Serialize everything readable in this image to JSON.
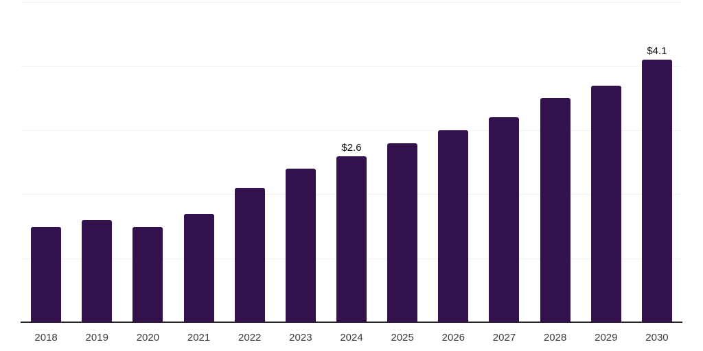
{
  "chart_data": {
    "type": "bar",
    "title": "",
    "xlabel": "",
    "ylabel": "",
    "categories": [
      "2018",
      "2019",
      "2020",
      "2021",
      "2022",
      "2023",
      "2024",
      "2025",
      "2026",
      "2027",
      "2028",
      "2029",
      "2030"
    ],
    "values": [
      1.5,
      1.6,
      1.5,
      1.7,
      2.1,
      2.4,
      2.6,
      2.8,
      3.0,
      3.2,
      3.5,
      3.7,
      4.1
    ],
    "data_labels": [
      {
        "category": "2024",
        "text": "$2.6"
      },
      {
        "category": "2030",
        "text": "$4.1"
      }
    ],
    "ylim": [
      0,
      5
    ],
    "gridline_step": 1,
    "grid": "horizontal",
    "legend": "none",
    "colors": {
      "bar": "#33114D",
      "axis_line": "#262626",
      "gridline": "#f0f0f0",
      "tick_label": "#3b3b3b",
      "data_label": "#111111",
      "background": "#ffffff"
    }
  }
}
